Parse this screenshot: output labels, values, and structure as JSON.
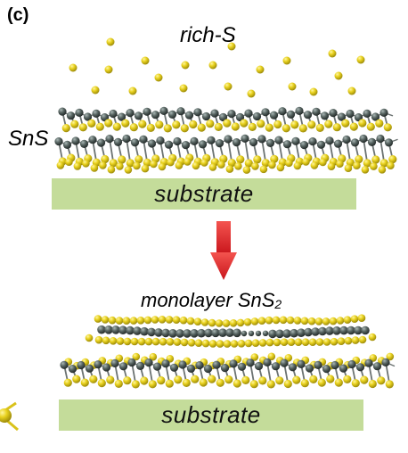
{
  "figure": {
    "panel_label": "(c)",
    "top_label": "rich-S",
    "material_label": "SnS",
    "bottom_label": {
      "text": "monolayer SnS",
      "subscript": "2"
    },
    "substrate_top": "substrate",
    "substrate_bottom": "substrate"
  },
  "colors": {
    "sulfur": "#e6cf1e",
    "tin": "#4c5b5a",
    "substrate": "#c4dc9a",
    "arrow": "#e0262a"
  },
  "icons": {
    "sulfur_atom": "yellow-sphere",
    "tin_atom": "dark-gray-sphere",
    "process_arrow": "red-down-arrow"
  }
}
